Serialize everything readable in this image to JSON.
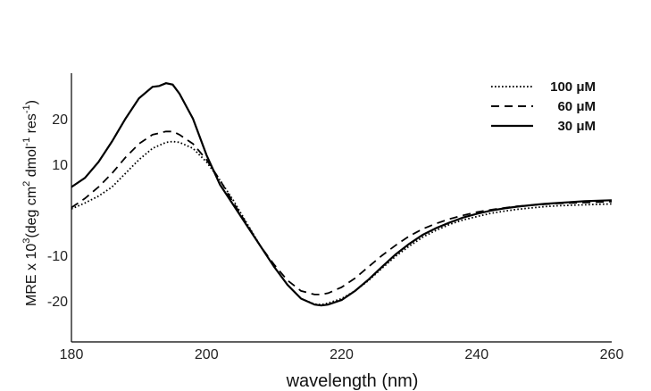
{
  "chart_data": {
    "type": "line",
    "title": "",
    "xlabel": "wavelength (nm)",
    "ylabel": {
      "prefix": "MRE x 10",
      "prefix_sup": "3",
      "part1": "(deg cm",
      "part1_sup": "2",
      "part2": " dmol",
      "part2_sup": "-1",
      "part3": " res",
      "part3_sup": "-1",
      "suffix": ")"
    },
    "xlim": [
      180,
      260
    ],
    "ylim": [
      -29,
      30
    ],
    "x_ticks": [
      {
        "value": 180,
        "label": "180"
      },
      {
        "value": 200,
        "label": "200"
      },
      {
        "value": 220,
        "label": "220"
      },
      {
        "value": 240,
        "label": "240"
      },
      {
        "value": 260,
        "label": "260"
      }
    ],
    "y_ticks": [
      {
        "value": 20,
        "label": "20"
      },
      {
        "value": 10,
        "label": "10"
      },
      {
        "value": -10,
        "label": "-10"
      },
      {
        "value": -20,
        "label": "-20"
      }
    ],
    "grid": false,
    "legend_position": "top-right",
    "series": [
      {
        "name": "100 μM",
        "style": "dotted",
        "color": "#000000",
        "x": [
          180,
          182,
          184,
          186,
          188,
          190,
          192,
          194,
          195,
          196,
          198,
          200,
          202,
          204,
          206,
          208,
          210,
          212,
          214,
          216,
          217,
          218,
          220,
          222,
          224,
          226,
          228,
          230,
          232,
          234,
          236,
          238,
          240,
          242,
          244,
          246,
          248,
          250,
          252,
          254,
          256,
          258,
          260
        ],
        "y": [
          0.2,
          1.5,
          3.0,
          5.0,
          8.0,
          11.0,
          13.5,
          14.8,
          15.0,
          14.8,
          13.5,
          10.5,
          6.5,
          2.0,
          -3.0,
          -8.0,
          -12.5,
          -16.5,
          -19.5,
          -20.7,
          -20.8,
          -20.5,
          -19.5,
          -17.8,
          -15.5,
          -12.8,
          -10.2,
          -8.0,
          -6.0,
          -4.5,
          -3.2,
          -2.2,
          -1.5,
          -0.8,
          -0.3,
          0.1,
          0.4,
          0.7,
          0.9,
          1.0,
          1.1,
          1.2,
          1.3
        ]
      },
      {
        "name": "60 μM",
        "style": "dashed",
        "color": "#000000",
        "x": [
          180,
          182,
          184,
          186,
          188,
          190,
          192,
          194,
          195,
          196,
          198,
          200,
          202,
          204,
          206,
          208,
          210,
          212,
          214,
          216,
          217,
          218,
          220,
          222,
          224,
          226,
          228,
          230,
          232,
          234,
          236,
          238,
          240,
          242,
          244,
          246,
          248,
          250,
          252,
          254,
          256,
          258,
          260
        ],
        "y": [
          0.5,
          2.5,
          5.0,
          8.0,
          11.5,
          14.5,
          16.5,
          17.2,
          17.2,
          16.5,
          14.5,
          11.0,
          6.5,
          1.5,
          -3.2,
          -8.0,
          -12.0,
          -15.5,
          -17.8,
          -18.6,
          -18.6,
          -18.3,
          -17.0,
          -15.0,
          -12.5,
          -10.0,
          -7.8,
          -5.8,
          -4.2,
          -3.0,
          -2.0,
          -1.2,
          -0.5,
          0.0,
          0.4,
          0.8,
          1.0,
          1.2,
          1.4,
          1.5,
          1.6,
          1.7,
          1.8
        ]
      },
      {
        "name": "30 μM",
        "style": "solid",
        "color": "#000000",
        "x": [
          180,
          182,
          184,
          186,
          188,
          190,
          192,
          193,
          194,
          195,
          196,
          198,
          200,
          202,
          204,
          206,
          208,
          210,
          212,
          214,
          216,
          217,
          218,
          220,
          222,
          224,
          226,
          228,
          230,
          232,
          234,
          236,
          238,
          240,
          242,
          244,
          246,
          248,
          250,
          252,
          254,
          256,
          258,
          260
        ],
        "y": [
          5.0,
          7.0,
          10.5,
          15.0,
          20.0,
          24.5,
          27.0,
          27.2,
          27.8,
          27.5,
          25.5,
          20.0,
          12.0,
          5.5,
          1.0,
          -3.5,
          -8.0,
          -12.5,
          -16.5,
          -19.5,
          -20.8,
          -21.0,
          -20.8,
          -19.8,
          -17.8,
          -15.3,
          -12.5,
          -9.8,
          -7.5,
          -5.5,
          -4.0,
          -2.8,
          -1.7,
          -0.9,
          -0.2,
          0.3,
          0.7,
          1.0,
          1.3,
          1.5,
          1.7,
          1.9,
          2.0,
          2.1
        ]
      }
    ]
  }
}
